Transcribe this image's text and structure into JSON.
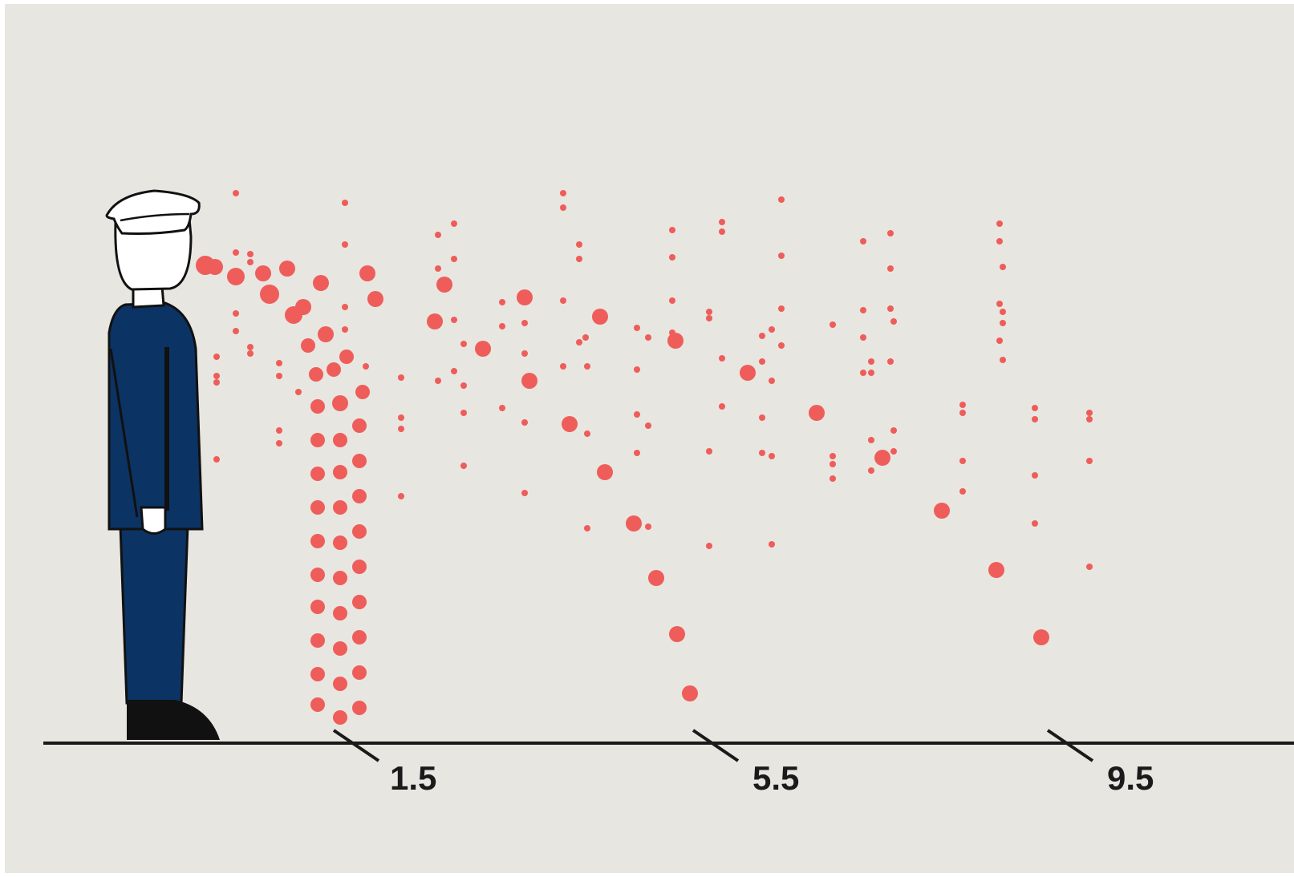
{
  "scale_labels": [
    {
      "text": "1.5"
    },
    {
      "text": "5.5"
    },
    {
      "text": "9.5"
    }
  ],
  "colors": {
    "background": "#e8e6e1",
    "droplet": "#ee5d5a",
    "uniform": "#0b3364",
    "outline": "#111111",
    "hat": "#ffffff",
    "shoes": "#111111",
    "ground": "#1a1a1a"
  },
  "icons": {
    "figure": "sailor-figure-icon"
  }
}
